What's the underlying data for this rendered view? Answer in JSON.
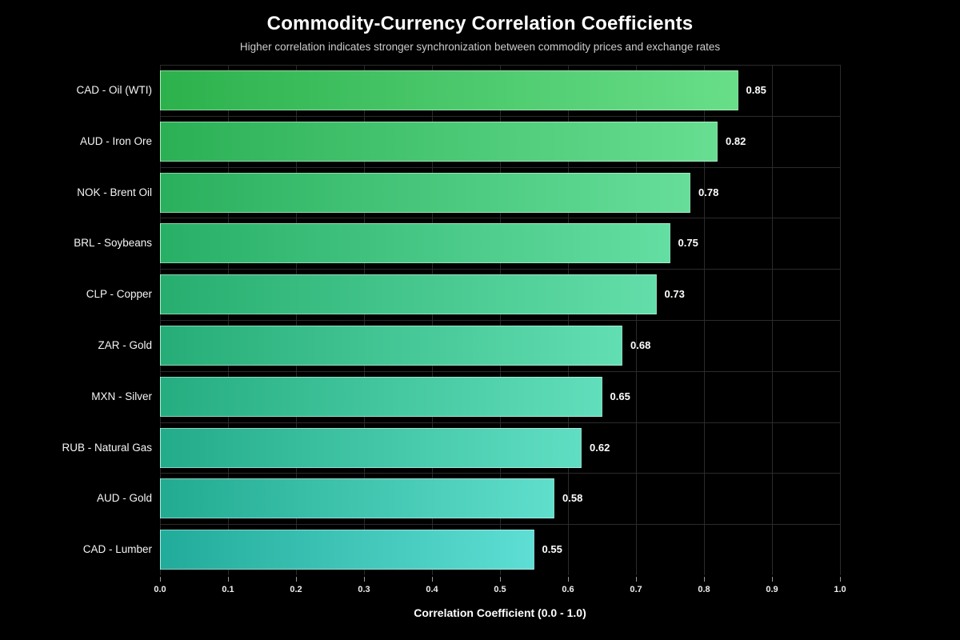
{
  "title": "Commodity-Currency Correlation Coefficients",
  "subtitle": "Higher correlation indicates stronger synchronization between commodity prices and exchange rates",
  "chart_data": {
    "type": "bar",
    "orientation": "horizontal",
    "title": "Commodity-Currency Correlation Coefficients",
    "subtitle": "Higher correlation indicates stronger synchronization between commodity prices and exchange rates",
    "xlabel": "Correlation Coefficient (0.0 - 1.0)",
    "ylabel": "",
    "xlim": [
      0.0,
      1.0
    ],
    "xticks": [
      "0.0",
      "0.1",
      "0.2",
      "0.3",
      "0.4",
      "0.5",
      "0.6",
      "0.7",
      "0.8",
      "0.9",
      "1.0"
    ],
    "grid": true,
    "legend": false,
    "background": "#000000",
    "categories": [
      "CAD - Oil (WTI)",
      "AUD - Iron Ore",
      "NOK - Brent Oil",
      "BRL - Soybeans",
      "CLP - Copper",
      "ZAR - Gold",
      "MXN - Silver",
      "RUB - Natural Gas",
      "AUD - Gold",
      "CAD - Lumber"
    ],
    "values": [
      0.85,
      0.82,
      0.78,
      0.75,
      0.73,
      0.68,
      0.65,
      0.62,
      0.58,
      0.55
    ],
    "value_labels": [
      "0.85",
      "0.82",
      "0.78",
      "0.75",
      "0.73",
      "0.68",
      "0.65",
      "0.62",
      "0.58",
      "0.55"
    ],
    "bar_colors": [
      {
        "start": "#2CB14C",
        "end": "#68DE89"
      },
      {
        "start": "#2BB055",
        "end": "#67DE91"
      },
      {
        "start": "#2AB05D",
        "end": "#66DE9A"
      },
      {
        "start": "#28AF66",
        "end": "#64DEA2"
      },
      {
        "start": "#27AE6F",
        "end": "#63DEAA"
      },
      {
        "start": "#26AD77",
        "end": "#62DEB3"
      },
      {
        "start": "#25AD80",
        "end": "#61DEBB"
      },
      {
        "start": "#23AC89",
        "end": "#60DEC3"
      },
      {
        "start": "#22AB91",
        "end": "#5FDECC"
      },
      {
        "start": "#21AB9A",
        "end": "#5EDED4"
      }
    ],
    "colors": {
      "grid": "#2b2b2b",
      "title_text": "#ffffff",
      "subtitle_text": "#cccccc",
      "label_text": "#f5f5f5",
      "value_text": "#ffffff",
      "bar_border": "rgba(255,255,255,0.45)"
    }
  }
}
